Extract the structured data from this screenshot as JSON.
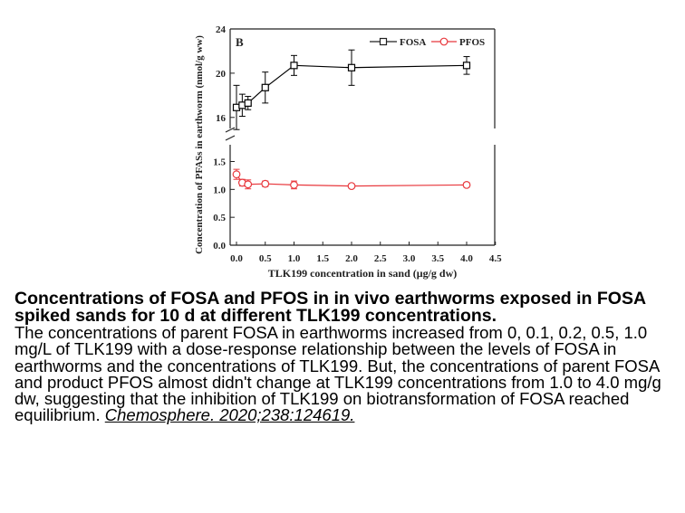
{
  "chart_data": {
    "type": "line",
    "panel_label": "B",
    "x": [
      0.0,
      0.1,
      0.2,
      0.5,
      1.0,
      2.0,
      4.0
    ],
    "xlabel": "TLK199 concentration in sand (μg/g dw)",
    "ylabel": "Concentration of PFASs in earthworm (nmol/g ww)",
    "xlim": [
      -0.1,
      4.5
    ],
    "xticks": [
      "0.0",
      "0.5",
      "1.0",
      "1.5",
      "2.0",
      "2.5",
      "3.0",
      "3.5",
      "4.0",
      "4.5"
    ],
    "yticks_upper": [
      "16",
      "20",
      "24"
    ],
    "yticks_lower": [
      "0.0",
      "0.5",
      "1.0",
      "1.5"
    ],
    "y_axis_broken": true,
    "ylim_lower": [
      0,
      1.8
    ],
    "ylim_upper": [
      15,
      24
    ],
    "legend_position": "top-right",
    "series": [
      {
        "name": "FOSA",
        "color": "#000000",
        "marker": "square",
        "values": [
          16.9,
          17.1,
          17.3,
          18.7,
          20.7,
          20.5,
          20.7
        ],
        "errors": [
          2.0,
          1.0,
          0.6,
          1.4,
          0.9,
          1.6,
          0.8
        ]
      },
      {
        "name": "PFOS",
        "color": "#e8383d",
        "marker": "circle",
        "values": [
          1.27,
          1.12,
          1.09,
          1.1,
          1.08,
          1.06,
          1.08
        ],
        "errors": [
          0.09,
          0.06,
          0.08,
          0.05,
          0.07,
          0.03,
          0.04
        ]
      }
    ]
  },
  "caption": {
    "title": "Concentrations of FOSA and PFOS in in vivo earthworms exposed in FOSA spiked sands for 10 d at different TLK199 concentrations.",
    "body": "The concentrations of parent FOSA in earthworms increased from 0, 0.1, 0.2, 0.5, 1.0 mg/L of TLK199 with a dose-response relationship between the levels of FOSA in earthworms and the concentrations of TLK199. But, the concentrations of parent FOSA and product PFOS almost didn't change at TLK199 concentrations from 1.0 to 4.0 mg/g dw, suggesting that the inhibition of TLK199 on biotransformation of FOSA reached equilibrium.",
    "citation": "Chemosphere. 2020;238:124619."
  }
}
